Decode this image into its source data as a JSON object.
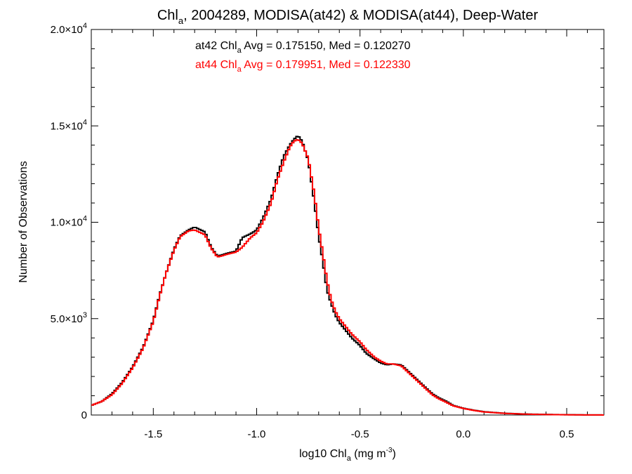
{
  "chart_data": {
    "type": "line",
    "title": {
      "prefix": "Chl",
      "sub": "a",
      "rest": ", 2004289, MODISA(at42) & MODISA(at44), Deep-Water"
    },
    "xlabel": {
      "prefix": "log10 Chl",
      "sub": "a",
      "mid": " (mg m",
      "sup": "-3",
      "suffix": ")"
    },
    "ylabel": "Number of Observations",
    "xlim": [
      -1.8,
      0.68
    ],
    "ylim": [
      0,
      20000
    ],
    "xticks": [
      {
        "value": -1.5,
        "label": "-1.5"
      },
      {
        "value": -1.0,
        "label": "-1.0"
      },
      {
        "value": -0.5,
        "label": "-0.5"
      },
      {
        "value": 0.0,
        "label": "0.0"
      },
      {
        "value": 0.5,
        "label": "0.5"
      }
    ],
    "yticks": [
      {
        "value": 0,
        "mant": "0",
        "exp": ""
      },
      {
        "value": 5000,
        "mant": "5.0×10",
        "exp": "3"
      },
      {
        "value": 10000,
        "mant": "1.0×10",
        "exp": "4"
      },
      {
        "value": 15000,
        "mant": "1.5×10",
        "exp": "4"
      },
      {
        "value": 20000,
        "mant": "2.0×10",
        "exp": "4"
      }
    ],
    "legend": [
      {
        "series": "at42",
        "prefix": "at42 Chl",
        "sub": "a",
        "rest": " Avg = 0.175150, Med = 0.120270",
        "color": "#000000"
      },
      {
        "series": "at44",
        "prefix": "at44 Chl",
        "sub": "a",
        "rest": " Avg = 0.179951, Med = 0.122330",
        "color": "#ff0000"
      }
    ],
    "series": [
      {
        "name": "at42",
        "color": "#000000",
        "x": [
          -1.8,
          -1.75,
          -1.7,
          -1.65,
          -1.6,
          -1.55,
          -1.5,
          -1.47,
          -1.44,
          -1.4,
          -1.37,
          -1.33,
          -1.3,
          -1.28,
          -1.25,
          -1.22,
          -1.19,
          -1.17,
          -1.14,
          -1.1,
          -1.07,
          -1.03,
          -1.0,
          -0.97,
          -0.93,
          -0.9,
          -0.87,
          -0.84,
          -0.82,
          -0.8,
          -0.78,
          -0.75,
          -0.72,
          -0.7,
          -0.68,
          -0.66,
          -0.64,
          -0.62,
          -0.6,
          -0.57,
          -0.54,
          -0.5,
          -0.47,
          -0.43,
          -0.4,
          -0.37,
          -0.34,
          -0.3,
          -0.27,
          -0.24,
          -0.21,
          -0.18,
          -0.15,
          -0.12,
          -0.08,
          -0.05,
          0.0,
          0.05,
          0.1,
          0.2,
          0.3,
          0.4,
          0.5,
          0.6,
          0.68
        ],
        "y": [
          500,
          700,
          1100,
          1700,
          2500,
          3500,
          4900,
          6200,
          7300,
          8600,
          9300,
          9600,
          9750,
          9650,
          9500,
          8700,
          8250,
          8300,
          8400,
          8500,
          9200,
          9400,
          9600,
          10200,
          11200,
          12400,
          13400,
          14000,
          14300,
          14500,
          14200,
          13200,
          11000,
          9300,
          8000,
          6500,
          5800,
          5200,
          4800,
          4400,
          4000,
          3600,
          3200,
          2900,
          2700,
          2600,
          2650,
          2600,
          2300,
          2000,
          1700,
          1400,
          1100,
          900,
          700,
          500,
          350,
          250,
          170,
          90,
          50,
          30,
          15,
          5,
          2
        ]
      },
      {
        "name": "at44",
        "color": "#ff0000",
        "x": [
          -1.8,
          -1.75,
          -1.7,
          -1.65,
          -1.6,
          -1.55,
          -1.5,
          -1.47,
          -1.44,
          -1.4,
          -1.37,
          -1.33,
          -1.3,
          -1.28,
          -1.25,
          -1.22,
          -1.19,
          -1.17,
          -1.14,
          -1.1,
          -1.07,
          -1.03,
          -1.0,
          -0.97,
          -0.93,
          -0.9,
          -0.87,
          -0.84,
          -0.82,
          -0.8,
          -0.78,
          -0.75,
          -0.72,
          -0.7,
          -0.68,
          -0.66,
          -0.64,
          -0.62,
          -0.6,
          -0.57,
          -0.54,
          -0.5,
          -0.47,
          -0.43,
          -0.4,
          -0.37,
          -0.34,
          -0.3,
          -0.27,
          -0.24,
          -0.21,
          -0.18,
          -0.15,
          -0.12,
          -0.08,
          -0.05,
          0.0,
          0.05,
          0.1,
          0.2,
          0.3,
          0.4,
          0.5,
          0.6,
          0.68
        ],
        "y": [
          500,
          700,
          1050,
          1650,
          2450,
          3450,
          4850,
          6150,
          7300,
          8550,
          9250,
          9550,
          9600,
          9500,
          9350,
          8650,
          8200,
          8250,
          8350,
          8450,
          8700,
          9200,
          9450,
          10000,
          11000,
          12200,
          13100,
          13900,
          14200,
          14300,
          14100,
          13300,
          11400,
          9700,
          8400,
          7000,
          6000,
          5400,
          5000,
          4600,
          4200,
          3800,
          3400,
          3000,
          2800,
          2650,
          2650,
          2550,
          2250,
          1950,
          1650,
          1350,
          1050,
          850,
          650,
          480,
          340,
          240,
          160,
          85,
          45,
          25,
          12,
          4,
          2
        ]
      }
    ]
  }
}
